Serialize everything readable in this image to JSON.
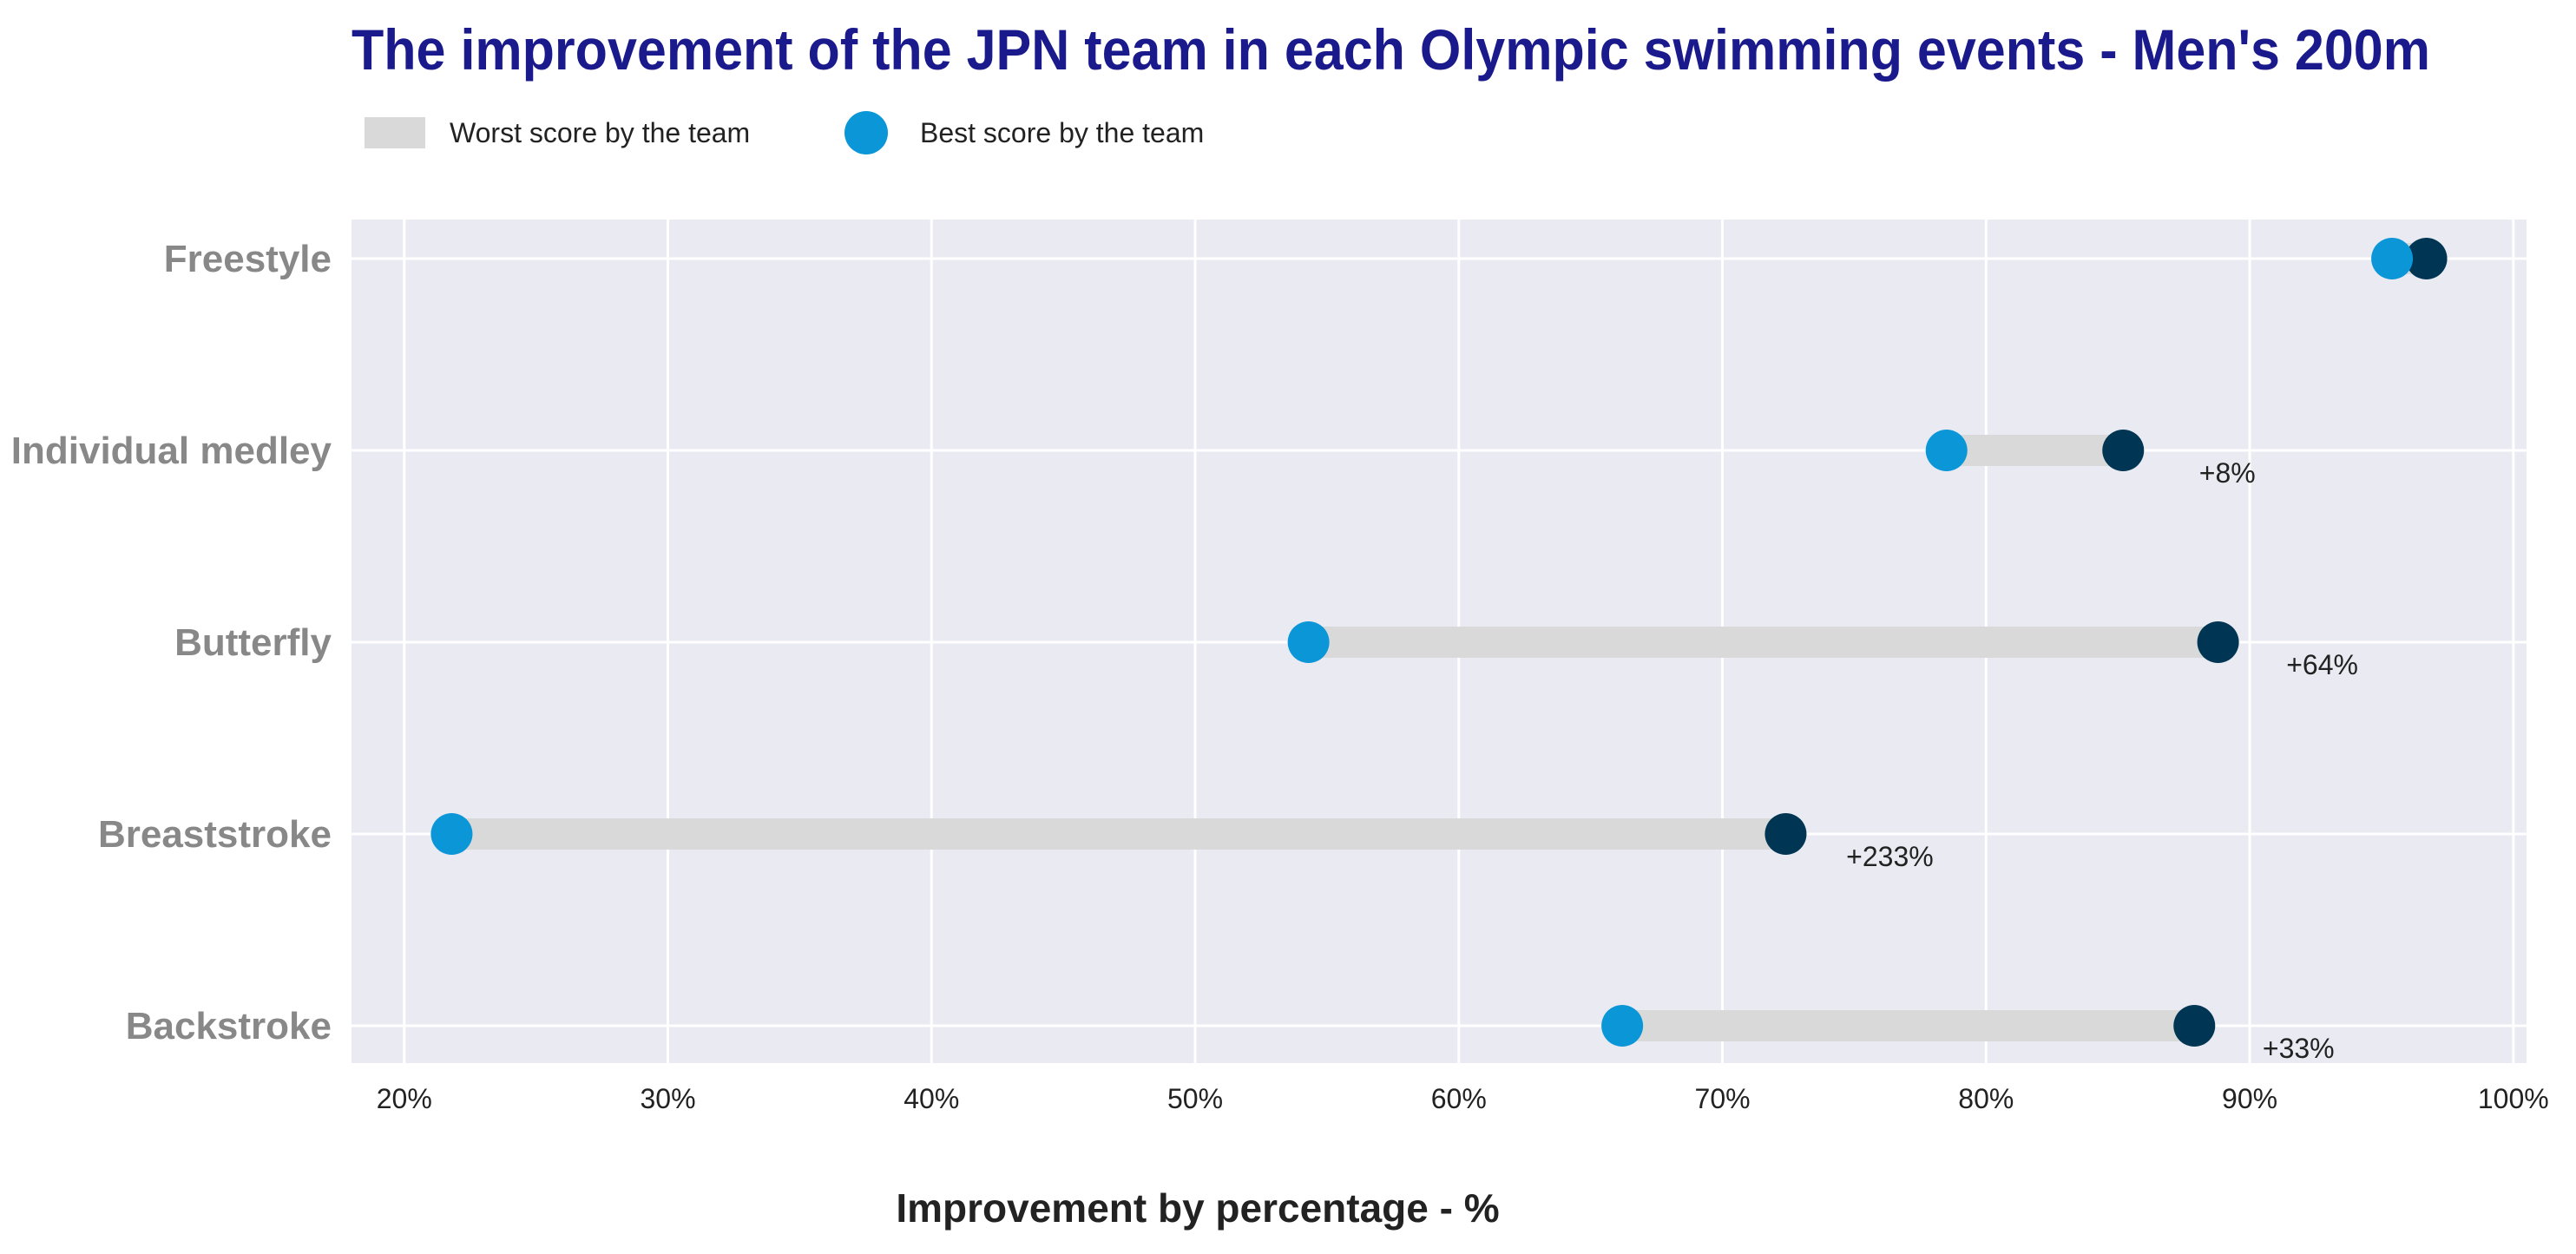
{
  "chart_data": {
    "type": "dumbbell",
    "title": "The improvement of the JPN team in each Olympic swimming events - Men's 200m",
    "xlabel": "Improvement by percentage - %",
    "ylabel": "",
    "xlim": [
      18,
      100.5
    ],
    "xticks": [
      "20%",
      "30%",
      "40%",
      "50%",
      "60%",
      "70%",
      "80%",
      "90%",
      "100%"
    ],
    "grid": true,
    "legend_position": "top-left",
    "legend": [
      {
        "name": "Worst score by the team",
        "kind": "bar"
      },
      {
        "name": "Best score by the team",
        "kind": "dot"
      }
    ],
    "categories": [
      "Freestyle",
      "Individual medley",
      "Butterfly",
      "Breaststroke",
      "Backstroke"
    ],
    "worst": [
      95.4,
      78.5,
      54.3,
      21.8,
      66.2
    ],
    "best": [
      96.7,
      85.2,
      88.8,
      72.4,
      87.9
    ],
    "annotations": [
      "",
      "+8%",
      "+64%",
      "+233%",
      "+33%"
    ],
    "colors": {
      "title": "#1a1a8c",
      "plot_background": "#eaeaf2",
      "grid": "#ffffff",
      "bar": "#d9d9d9",
      "worst_dot": "#0b96d8",
      "best_dot": "#003553",
      "category_label": "#888888"
    }
  }
}
